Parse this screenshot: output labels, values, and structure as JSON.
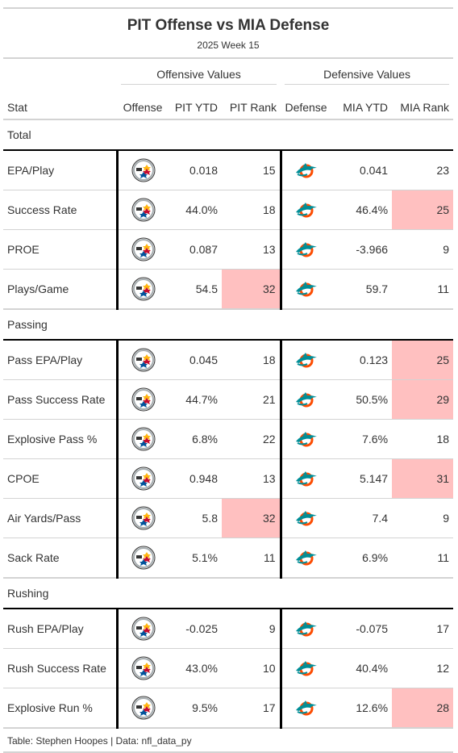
{
  "title": "PIT Offense vs MIA Defense",
  "subtitle": "2025 Week 15",
  "spanners": {
    "offense": "Offensive Values",
    "defense": "Defensive Values"
  },
  "columns": {
    "stat": "Stat",
    "offense": "Offense",
    "off_ytd": "PIT YTD",
    "off_rank": "PIT Rank",
    "defense": "Defense",
    "def_ytd": "MIA YTD",
    "def_rank": "MIA Rank"
  },
  "icons": {
    "offense_logo": "steelers-logo-icon",
    "defense_logo": "dolphins-logo-icon"
  },
  "colors": {
    "highlight": "#ffc0c0",
    "rule": "#d3d3d3",
    "separator": "#000000"
  },
  "groups": [
    {
      "name": "Total",
      "rows": [
        {
          "stat": "EPA/Play",
          "off_ytd": "0.018",
          "off_rank": "15",
          "def_ytd": "0.041",
          "def_rank": "23",
          "off_hl": false,
          "def_hl": false
        },
        {
          "stat": "Success Rate",
          "off_ytd": "44.0%",
          "off_rank": "18",
          "def_ytd": "46.4%",
          "def_rank": "25",
          "off_hl": false,
          "def_hl": true
        },
        {
          "stat": "PROE",
          "off_ytd": "0.087",
          "off_rank": "13",
          "def_ytd": "-3.966",
          "def_rank": "9",
          "off_hl": false,
          "def_hl": false
        },
        {
          "stat": "Plays/Game",
          "off_ytd": "54.5",
          "off_rank": "32",
          "def_ytd": "59.7",
          "def_rank": "11",
          "off_hl": true,
          "def_hl": false
        }
      ]
    },
    {
      "name": "Passing",
      "rows": [
        {
          "stat": "Pass EPA/Play",
          "off_ytd": "0.045",
          "off_rank": "18",
          "def_ytd": "0.123",
          "def_rank": "25",
          "off_hl": false,
          "def_hl": true
        },
        {
          "stat": "Pass Success Rate",
          "off_ytd": "44.7%",
          "off_rank": "21",
          "def_ytd": "50.5%",
          "def_rank": "29",
          "off_hl": false,
          "def_hl": true
        },
        {
          "stat": "Explosive Pass %",
          "off_ytd": "6.8%",
          "off_rank": "22",
          "def_ytd": "7.6%",
          "def_rank": "18",
          "off_hl": false,
          "def_hl": false
        },
        {
          "stat": "CPOE",
          "off_ytd": "0.948",
          "off_rank": "13",
          "def_ytd": "5.147",
          "def_rank": "31",
          "off_hl": false,
          "def_hl": true
        },
        {
          "stat": "Air Yards/Pass",
          "off_ytd": "5.8",
          "off_rank": "32",
          "def_ytd": "7.4",
          "def_rank": "9",
          "off_hl": true,
          "def_hl": false
        },
        {
          "stat": "Sack Rate",
          "off_ytd": "5.1%",
          "off_rank": "11",
          "def_ytd": "6.9%",
          "def_rank": "11",
          "off_hl": false,
          "def_hl": false
        }
      ]
    },
    {
      "name": "Rushing",
      "rows": [
        {
          "stat": "Rush EPA/Play",
          "off_ytd": "-0.025",
          "off_rank": "9",
          "def_ytd": "-0.075",
          "def_rank": "17",
          "off_hl": false,
          "def_hl": false
        },
        {
          "stat": "Rush Success Rate",
          "off_ytd": "43.0%",
          "off_rank": "10",
          "def_ytd": "40.4%",
          "def_rank": "12",
          "off_hl": false,
          "def_hl": false
        },
        {
          "stat": "Explosive Run %",
          "off_ytd": "9.5%",
          "off_rank": "17",
          "def_ytd": "12.6%",
          "def_rank": "28",
          "off_hl": false,
          "def_hl": true
        }
      ]
    }
  ],
  "source": "Table: Stephen Hoopes | Data: nfl_data_py"
}
